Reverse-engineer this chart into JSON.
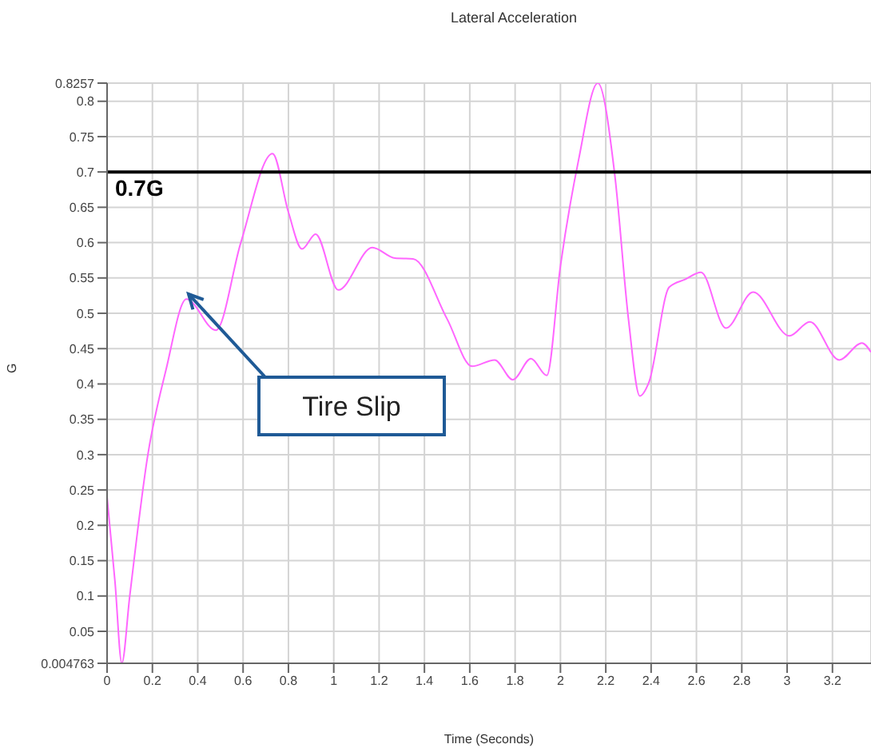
{
  "chart_data": {
    "type": "line",
    "title": "Lateral Acceleration",
    "xlabel": "Time (Seconds)",
    "ylabel": "G",
    "xlim": [
      0,
      3.37
    ],
    "xticks": [
      0,
      0.2,
      0.4,
      0.6,
      0.8,
      1,
      1.2,
      1.4,
      1.6,
      1.8,
      2,
      2.2,
      2.4,
      2.6,
      2.8,
      3,
      3.2
    ],
    "ylim": [
      0.004763,
      0.8257
    ],
    "yticks": [
      0.004763,
      0.05,
      0.1,
      0.15,
      0.2,
      0.25,
      0.3,
      0.35,
      0.4,
      0.45,
      0.5,
      0.55,
      0.6,
      0.65,
      0.7,
      0.75,
      0.8,
      0.8257
    ],
    "grid": true,
    "marker": "none",
    "line_style": "solid",
    "series": [
      {
        "color": "#ff66ff",
        "x": [
          0,
          0.035,
          0.065,
          0.1,
          0.18,
          0.26,
          0.35,
          0.48,
          0.59,
          0.73,
          0.8,
          0.86,
          0.92,
          1.02,
          1.17,
          1.27,
          1.35,
          1.5,
          1.61,
          1.71,
          1.79,
          1.87,
          1.94,
          2.0,
          2.08,
          2.165,
          2.24,
          2.3,
          2.35,
          2.39,
          2.48,
          2.55,
          2.62,
          2.73,
          2.85,
          3.01,
          3.1,
          3.23,
          3.33,
          3.37
        ],
        "values": [
          0.24,
          0.12,
          0.005,
          0.1,
          0.3,
          0.42,
          0.52,
          0.476,
          0.6,
          0.726,
          0.643,
          0.591,
          0.612,
          0.533,
          0.593,
          0.578,
          0.577,
          0.492,
          0.425,
          0.434,
          0.406,
          0.436,
          0.412,
          0.567,
          0.717,
          0.8257,
          0.695,
          0.492,
          0.383,
          0.402,
          0.537,
          0.548,
          0.558,
          0.479,
          0.53,
          0.468,
          0.488,
          0.434,
          0.458,
          0.445
        ]
      }
    ],
    "ref_lines": [
      {
        "axis": "y",
        "value": 0.7,
        "label": "0.7G",
        "color": "#000000"
      }
    ],
    "annotations": [
      "Tire Slip"
    ]
  }
}
